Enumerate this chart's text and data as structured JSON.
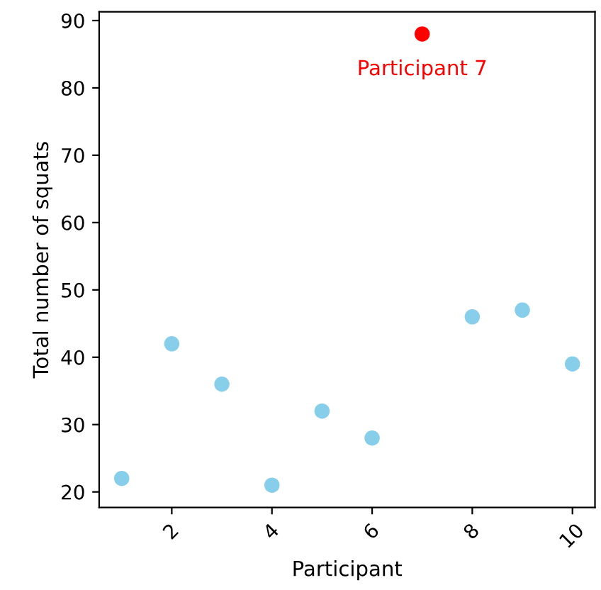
{
  "chart_data": {
    "type": "scatter",
    "xlabel": "Participant",
    "ylabel": "Total number of squats",
    "series": [
      {
        "color": "#87ceeb",
        "x": [
          1,
          2,
          3,
          4,
          5,
          6,
          8,
          9,
          10
        ],
        "values": [
          22,
          42,
          36,
          21,
          32,
          28,
          46,
          47,
          39
        ]
      },
      {
        "color": "#ff0000",
        "x": [
          7
        ],
        "values": [
          88
        ]
      }
    ],
    "annotations": [
      {
        "text": "Participant 7",
        "x": 7,
        "y": 88
      }
    ],
    "xlim": [
      0.55,
      10.45
    ],
    "xticks": [
      2,
      4,
      6,
      8,
      10
    ],
    "ylim": [
      17.7,
      91.3
    ],
    "yticks": [
      20,
      30,
      40,
      50,
      60,
      70,
      80,
      90
    ],
    "marker": "circle",
    "grid": false,
    "legend": false
  }
}
